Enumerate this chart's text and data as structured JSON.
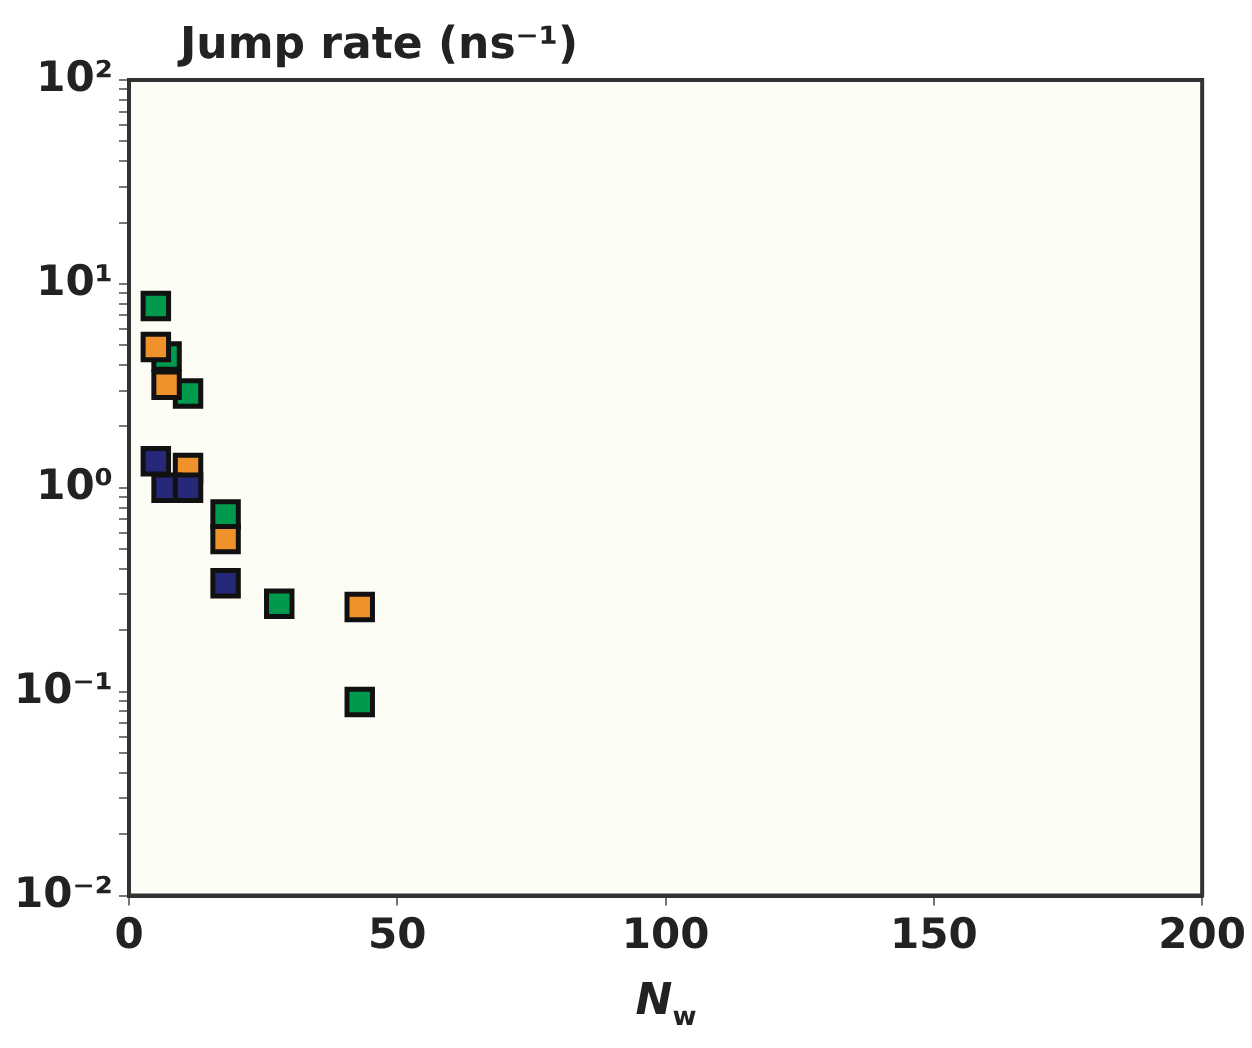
{
  "chart_data": {
    "type": "scatter",
    "title": "Jump rate (ns⁻¹)",
    "xlabel": "N$_{w}$",
    "marker": "square",
    "grid": false,
    "legend": false,
    "log": "y",
    "xlim": [
      0,
      200
    ],
    "xticks": [
      0,
      50,
      100,
      150,
      200
    ],
    "ylim": [
      0.01,
      100
    ],
    "yticks": [
      {
        "value": 0.01,
        "label": "10⁻²"
      },
      {
        "value": 0.02,
        "label": null
      },
      {
        "value": 0.03,
        "label": null
      },
      {
        "value": 0.04,
        "label": null
      },
      {
        "value": 0.05,
        "label": null
      },
      {
        "value": 0.06,
        "label": null
      },
      {
        "value": 0.07,
        "label": null
      },
      {
        "value": 0.08,
        "label": null
      },
      {
        "value": 0.09,
        "label": null
      },
      {
        "value": 0.1,
        "label": "10⁻¹"
      },
      {
        "value": 0.2,
        "label": null
      },
      {
        "value": 0.3,
        "label": null
      },
      {
        "value": 0.4,
        "label": null
      },
      {
        "value": 0.5,
        "label": null
      },
      {
        "value": 0.6,
        "label": null
      },
      {
        "value": 0.7,
        "label": null
      },
      {
        "value": 0.8,
        "label": null
      },
      {
        "value": 0.9,
        "label": null
      },
      {
        "value": 1,
        "label": "10⁰"
      },
      {
        "value": 2,
        "label": null
      },
      {
        "value": 3,
        "label": null
      },
      {
        "value": 4,
        "label": null
      },
      {
        "value": 5,
        "label": null
      },
      {
        "value": 6,
        "label": null
      },
      {
        "value": 7,
        "label": null
      },
      {
        "value": 8,
        "label": null
      },
      {
        "value": 9,
        "label": null
      },
      {
        "value": 10,
        "label": "10¹"
      },
      {
        "value": 20,
        "label": null
      },
      {
        "value": 30,
        "label": null
      },
      {
        "value": 40,
        "label": null
      },
      {
        "value": 50,
        "label": null
      },
      {
        "value": 60,
        "label": null
      },
      {
        "value": 70,
        "label": null
      },
      {
        "value": 80,
        "label": null
      },
      {
        "value": 90,
        "label": null
      },
      {
        "value": 100,
        "label": "10²"
      }
    ],
    "series": [
      {
        "color": "#26287a",
        "x": [
          5,
          7,
          11,
          18
        ],
        "values": [
          1.35,
          1.0,
          1.0,
          0.34
        ]
      },
      {
        "color": "#f0922b",
        "x": [
          5,
          7,
          11,
          18,
          43
        ],
        "values": [
          4.9,
          3.2,
          1.25,
          0.56,
          0.26
        ]
      },
      {
        "color": "#009a4e",
        "x": [
          5,
          7,
          11,
          18,
          28,
          43
        ],
        "values": [
          7.8,
          4.4,
          2.9,
          0.74,
          0.27,
          0.089
        ]
      }
    ]
  }
}
